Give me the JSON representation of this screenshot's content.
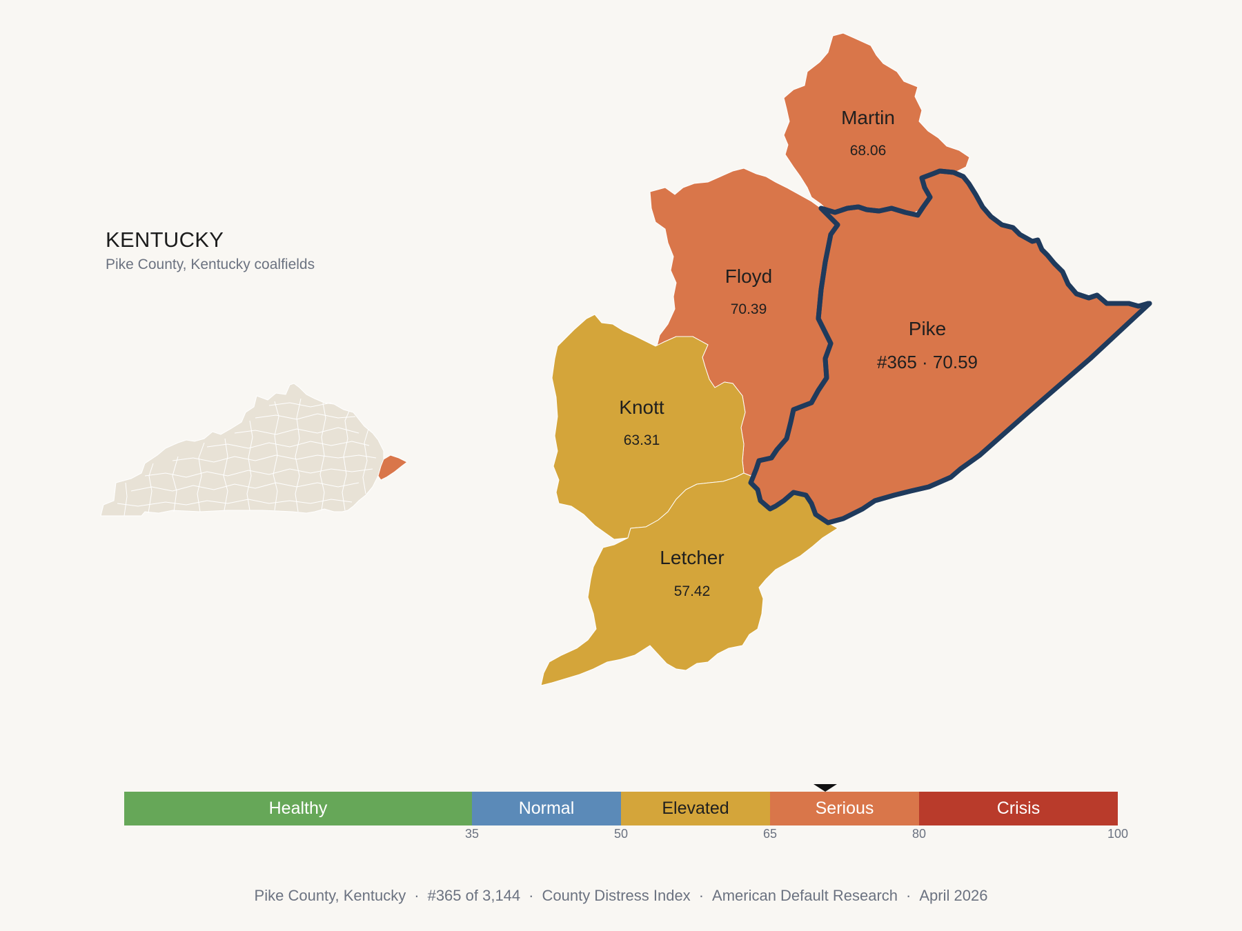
{
  "state": {
    "title": "KENTUCKY",
    "subtitle": "Pike County, Kentucky coalfields"
  },
  "counties": {
    "martin": {
      "name": "Martin",
      "score": "68.06",
      "color": "#d9764a"
    },
    "floyd": {
      "name": "Floyd",
      "score": "70.39",
      "color": "#d9764a"
    },
    "pike": {
      "name": "Pike",
      "score": "#365 · 70.59",
      "color": "#d9764a",
      "outline": "#1f3a5c"
    },
    "knott": {
      "name": "Knott",
      "score": "63.31",
      "color": "#d4a53a"
    },
    "letcher": {
      "name": "Letcher",
      "score": "57.42",
      "color": "#d4a53a"
    }
  },
  "inset": {
    "base_color": "#e8e2d6",
    "highlight_color": "#d9764a",
    "highlight_icon": "pike-county-highlight"
  },
  "scale": {
    "segments": [
      {
        "label": "Healthy",
        "from": 0,
        "to": 35,
        "color": "#66a758"
      },
      {
        "label": "Normal",
        "from": 35,
        "to": 50,
        "color": "#5b8ab8"
      },
      {
        "label": "Elevated",
        "from": 50,
        "to": 65,
        "color": "#d4a53a"
      },
      {
        "label": "Serious",
        "from": 65,
        "to": 80,
        "color": "#d9764a"
      },
      {
        "label": "Crisis",
        "from": 80,
        "to": 100,
        "color": "#b93b2b"
      }
    ],
    "ticks": [
      "35",
      "50",
      "65",
      "80",
      "100"
    ],
    "marker_value": 70.59
  },
  "footer": {
    "county": "Pike County, Kentucky",
    "rank": "#365 of 3,144",
    "index": "County Distress Index",
    "source": "American Default Research",
    "date": "April 2026"
  }
}
